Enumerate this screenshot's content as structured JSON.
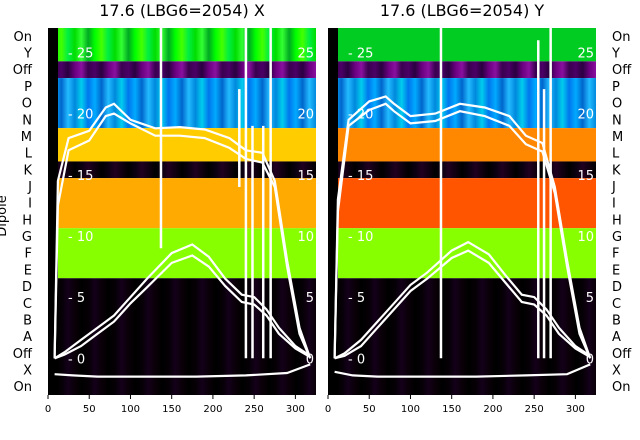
{
  "chart_data": {
    "type": "heatmap",
    "ylabel": "Dipole",
    "row_labels": [
      "On",
      "Y",
      "Off",
      "P",
      "O",
      "N",
      "M",
      "L",
      "K",
      "J",
      "I",
      "H",
      "G",
      "F",
      "E",
      "D",
      "C",
      "B",
      "A",
      "Off",
      "X",
      "On"
    ],
    "x_ticks": [
      0,
      50,
      100,
      150,
      200,
      250,
      300
    ],
    "x_range": [
      0,
      325
    ],
    "inner_ticks": [
      25,
      20,
      15,
      10,
      5,
      0
    ],
    "inner_range": [
      -3,
      27
    ],
    "panels": [
      {
        "title": "17.6 (LBG6=2054) X",
        "bands": [
          {
            "rows": [
              0,
              1
            ],
            "palette": "green"
          },
          {
            "rows": [
              2,
              2
            ],
            "palette": "purple"
          },
          {
            "rows": [
              3,
              5
            ],
            "palette": "blue"
          },
          {
            "rows": [
              6,
              7
            ],
            "palette": "heat"
          },
          {
            "rows": [
              8,
              8
            ],
            "palette": "dark"
          },
          {
            "rows": [
              9,
              11
            ],
            "palette": "heat"
          },
          {
            "rows": [
              12,
              14
            ],
            "palette": "greenyellow"
          },
          {
            "rows": [
              15,
              21
            ],
            "palette": "black"
          }
        ],
        "lines": [
          {
            "name": "",
            "points": [
              [
                8,
                0.0
              ],
              [
                12,
                14.5
              ],
              [
                25,
                18
              ],
              [
                50,
                18.6
              ],
              [
                70,
                20.5
              ],
              [
                80,
                20.8
              ],
              [
                100,
                19.5
              ],
              [
                130,
                18.8
              ],
              [
                160,
                18.9
              ],
              [
                190,
                18.7
              ],
              [
                220,
                18.0
              ],
              [
                240,
                17.0
              ],
              [
                260,
                16.8
              ],
              [
                275,
                14.5
              ],
              [
                290,
                8
              ],
              [
                305,
                2.5
              ],
              [
                318,
                0
              ]
            ]
          },
          {
            "name": "",
            "points": [
              [
                8,
                0.0
              ],
              [
                12,
                12.5
              ],
              [
                25,
                17
              ],
              [
                50,
                17.8
              ],
              [
                70,
                19.8
              ],
              [
                80,
                20.0
              ],
              [
                100,
                19.2
              ],
              [
                130,
                18.2
              ],
              [
                160,
                18.2
              ],
              [
                190,
                18.0
              ],
              [
                220,
                17.2
              ],
              [
                240,
                16.3
              ],
              [
                260,
                16.0
              ],
              [
                275,
                14.0
              ],
              [
                290,
                7.5
              ],
              [
                305,
                2
              ],
              [
                318,
                0
              ]
            ]
          },
          {
            "name": "",
            "points": [
              [
                8,
                0.0
              ],
              [
                20,
                0.5
              ],
              [
                40,
                1.5
              ],
              [
                60,
                2.5
              ],
              [
                80,
                3.5
              ],
              [
                100,
                5
              ],
              [
                120,
                6.5
              ],
              [
                150,
                8.6
              ],
              [
                175,
                9.3
              ],
              [
                195,
                8.3
              ],
              [
                215,
                6.5
              ],
              [
                235,
                5.2
              ],
              [
                250,
                5
              ],
              [
                265,
                4
              ],
              [
                280,
                2.5
              ],
              [
                300,
                1
              ],
              [
                318,
                0.2
              ]
            ]
          },
          {
            "name": "",
            "points": [
              [
                8,
                0.0
              ],
              [
                20,
                0.3
              ],
              [
                40,
                1
              ],
              [
                60,
                2
              ],
              [
                80,
                3
              ],
              [
                100,
                4.5
              ],
              [
                120,
                5.8
              ],
              [
                150,
                7.8
              ],
              [
                175,
                8.4
              ],
              [
                195,
                7.5
              ],
              [
                215,
                5.9
              ],
              [
                235,
                4.6
              ],
              [
                250,
                4.4
              ],
              [
                265,
                3.5
              ],
              [
                280,
                2
              ],
              [
                300,
                0.8
              ],
              [
                318,
                0.1
              ]
            ]
          },
          {
            "name": "",
            "points": [
              [
                8,
                -1.3
              ],
              [
                30,
                -1.4
              ],
              [
                60,
                -1.5
              ],
              [
                120,
                -1.5
              ],
              [
                180,
                -1.5
              ],
              [
                240,
                -1.4
              ],
              [
                290,
                -1.2
              ],
              [
                318,
                -0.5
              ]
            ]
          }
        ],
        "spikes": [
          [
            137,
            9,
            27
          ],
          [
            232,
            14,
            22
          ],
          [
            240,
            0,
            27
          ],
          [
            248,
            0,
            19
          ],
          [
            261,
            0,
            19
          ],
          [
            270,
            0,
            27
          ]
        ]
      },
      {
        "title": "17.6 (LBG6=2054) Y",
        "bands": [
          {
            "rows": [
              0,
              1
            ],
            "palette": "greenyellow"
          },
          {
            "rows": [
              2,
              2
            ],
            "palette": "purple"
          },
          {
            "rows": [
              3,
              5
            ],
            "palette": "blue"
          },
          {
            "rows": [
              6,
              7
            ],
            "palette": "heatred"
          },
          {
            "rows": [
              8,
              8
            ],
            "palette": "dark"
          },
          {
            "rows": [
              9,
              11
            ],
            "palette": "heatred"
          },
          {
            "rows": [
              12,
              14
            ],
            "palette": "greenyellow"
          },
          {
            "rows": [
              15,
              21
            ],
            "palette": "black"
          }
        ],
        "lines": [
          {
            "name": "",
            "points": [
              [
                8,
                0.0
              ],
              [
                12,
                13
              ],
              [
                25,
                19.5
              ],
              [
                50,
                21
              ],
              [
                70,
                21.4
              ],
              [
                80,
                20.8
              ],
              [
                100,
                19.8
              ],
              [
                130,
                20.0
              ],
              [
                160,
                20.8
              ],
              [
                190,
                20.5
              ],
              [
                220,
                19.8
              ],
              [
                240,
                18.2
              ],
              [
                260,
                17.6
              ],
              [
                275,
                14.0
              ],
              [
                290,
                8
              ],
              [
                305,
                2.5
              ],
              [
                318,
                0
              ]
            ]
          },
          {
            "name": "",
            "points": [
              [
                8,
                0.0
              ],
              [
                12,
                12
              ],
              [
                25,
                19
              ],
              [
                50,
                20.3
              ],
              [
                70,
                20.8
              ],
              [
                80,
                20.2
              ],
              [
                100,
                19.2
              ],
              [
                130,
                19.4
              ],
              [
                160,
                20.2
              ],
              [
                190,
                19.8
              ],
              [
                220,
                19.0
              ],
              [
                240,
                17.5
              ],
              [
                260,
                16.9
              ],
              [
                275,
                13.5
              ],
              [
                290,
                7.5
              ],
              [
                305,
                2
              ],
              [
                318,
                0
              ]
            ]
          },
          {
            "name": "",
            "points": [
              [
                8,
                0.0
              ],
              [
                20,
                0.4
              ],
              [
                40,
                1.5
              ],
              [
                60,
                3
              ],
              [
                80,
                4.5
              ],
              [
                100,
                6
              ],
              [
                120,
                7
              ],
              [
                150,
                8.8
              ],
              [
                170,
                9.5
              ],
              [
                195,
                8.5
              ],
              [
                215,
                6.8
              ],
              [
                235,
                5.2
              ],
              [
                250,
                5
              ],
              [
                265,
                4
              ],
              [
                280,
                2.5
              ],
              [
                300,
                1
              ],
              [
                318,
                0.2
              ]
            ]
          },
          {
            "name": "",
            "points": [
              [
                8,
                0.0
              ],
              [
                20,
                0.2
              ],
              [
                40,
                1
              ],
              [
                60,
                2.5
              ],
              [
                80,
                4
              ],
              [
                100,
                5.5
              ],
              [
                120,
                6.5
              ],
              [
                150,
                8.2
              ],
              [
                170,
                8.8
              ],
              [
                195,
                7.8
              ],
              [
                215,
                6.2
              ],
              [
                235,
                4.6
              ],
              [
                250,
                4.4
              ],
              [
                265,
                3.5
              ],
              [
                280,
                2
              ],
              [
                300,
                0.8
              ],
              [
                318,
                0.1
              ]
            ]
          },
          {
            "name": "",
            "points": [
              [
                8,
                -1.1
              ],
              [
                30,
                -1.4
              ],
              [
                60,
                -1.5
              ],
              [
                120,
                -1.5
              ],
              [
                180,
                -1.5
              ],
              [
                240,
                -1.4
              ],
              [
                290,
                -1.3
              ],
              [
                318,
                -0.5
              ]
            ]
          }
        ],
        "spikes": [
          [
            137,
            0,
            27
          ],
          [
            255,
            0,
            26
          ],
          [
            262,
            0,
            22
          ],
          [
            270,
            0,
            27
          ]
        ]
      }
    ]
  }
}
